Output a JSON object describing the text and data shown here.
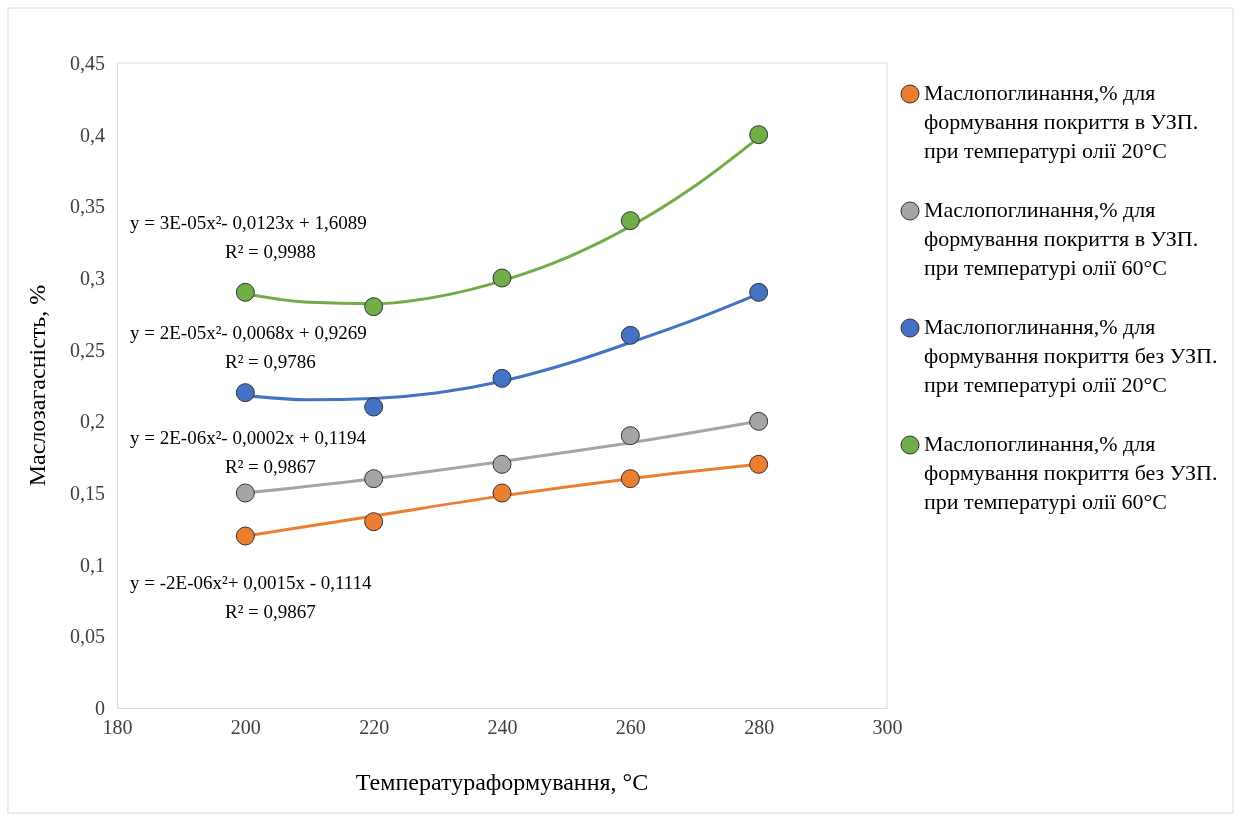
{
  "chart_data": {
    "type": "scatter",
    "xlabel": "Температураформування, °C",
    "ylabel": "Маслозагасність, %",
    "xlim": [
      180,
      300
    ],
    "xticks": [
      180,
      200,
      220,
      240,
      260,
      280,
      300
    ],
    "ylim": [
      0,
      0.45
    ],
    "yticks": [
      {
        "value": 0,
        "label": "0"
      },
      {
        "value": 0.05,
        "label": "0,05"
      },
      {
        "value": 0.1,
        "label": "0,1"
      },
      {
        "value": 0.15,
        "label": "0,15"
      },
      {
        "value": 0.2,
        "label": "0,2"
      },
      {
        "value": 0.25,
        "label": "0,25"
      },
      {
        "value": 0.3,
        "label": "0,3"
      },
      {
        "value": 0.35,
        "label": "0,35"
      },
      {
        "value": 0.4,
        "label": "0,4"
      },
      {
        "value": 0.45,
        "label": "0,45"
      }
    ],
    "x": [
      200,
      220,
      240,
      260,
      280
    ],
    "marker": "circle",
    "legend": "right",
    "grid": false,
    "series": [
      {
        "name": "Маслопоглинання,% для формування покриття в УЗП. при температурі олії 20°C",
        "color": "#ed7d31",
        "values": [
          0.12,
          0.13,
          0.15,
          0.16,
          0.17
        ]
      },
      {
        "name": "Маслопоглинання,% для формування покриття в УЗП. при температурі олії 60°C",
        "color": "#a5a5a5",
        "values": [
          0.15,
          0.16,
          0.17,
          0.19,
          0.2
        ]
      },
      {
        "name": "Маслопоглинання,% для формування покриття без УЗП. при температурі олії 20°C",
        "color": "#4472c4",
        "values": [
          0.22,
          0.21,
          0.23,
          0.26,
          0.29
        ]
      },
      {
        "name": "Маслопоглинання,% для формування покриття без УЗП. при температурі олії 60°C",
        "color": "#70ad47",
        "values": [
          0.29,
          0.28,
          0.3,
          0.34,
          0.4
        ]
      },
      {
        "type": "line",
        "marker": "none",
        "color": "#70ad47",
        "x": [
          200,
          210,
          220,
          230,
          240,
          250,
          260,
          270,
          280
        ],
        "values": [
          0.289,
          0.283,
          0.282,
          0.287,
          0.298,
          0.314,
          0.336,
          0.364,
          0.398
        ]
      },
      {
        "type": "line",
        "marker": "none",
        "color": "#4472c4",
        "x": [
          200,
          210,
          220,
          230,
          240,
          250,
          260,
          270,
          280
        ],
        "values": [
          0.218,
          0.215,
          0.216,
          0.22,
          0.228,
          0.24,
          0.255,
          0.271,
          0.289
        ]
      },
      {
        "type": "line",
        "marker": "none",
        "color": "#a5a5a5",
        "x": [
          200,
          220,
          240,
          260,
          280
        ],
        "values": [
          0.15,
          0.16,
          0.172,
          0.185,
          0.2
        ]
      },
      {
        "type": "line",
        "marker": "none",
        "color": "#ed7d31",
        "x": [
          200,
          220,
          240,
          260,
          280
        ],
        "values": [
          0.12,
          0.134,
          0.148,
          0.16,
          0.17
        ]
      }
    ],
    "annotations": [
      "y = 3E-05x²- 0,0123x + 1,6089",
      "R² = 0,9988",
      "y = 2E-05x²- 0,0068x + 0,9269",
      "R² = 0,9786",
      "y = 2E-06x²- 0,0002x + 0,1194",
      "R² = 0,9867",
      "y = -2E-06x²+ 0,0015x - 0,1114",
      "R² = 0,9867"
    ]
  }
}
